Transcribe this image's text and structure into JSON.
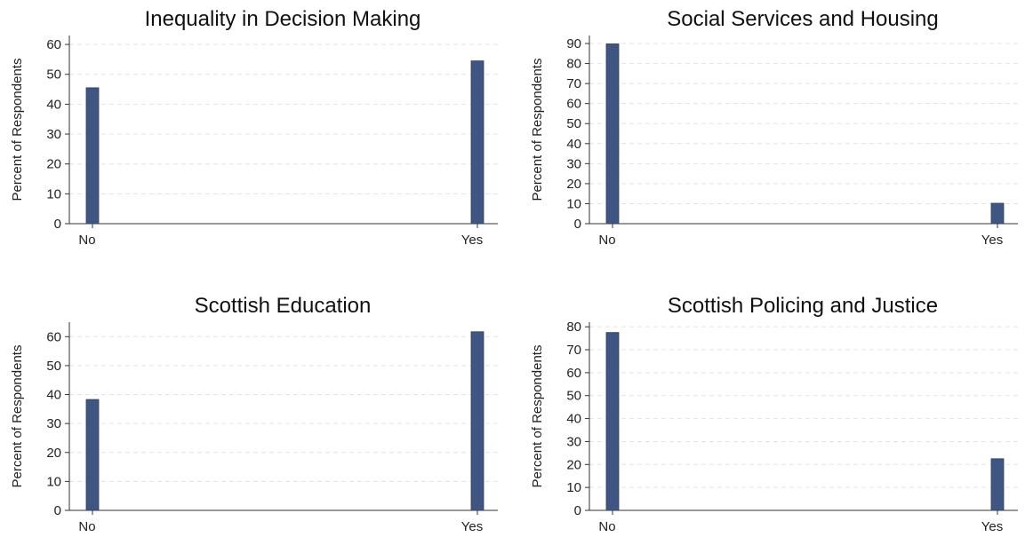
{
  "chart_data": [
    {
      "type": "bar",
      "title": "Inequality in Decision Making",
      "ylabel": "Percent of Respondents",
      "categories": [
        "No",
        "Yes"
      ],
      "values": [
        45.5,
        54.5
      ],
      "ylim": [
        0,
        63
      ],
      "yticks": [
        0,
        10,
        20,
        30,
        40,
        50,
        60
      ],
      "grid": true,
      "bar_color": "#3f5582"
    },
    {
      "type": "bar",
      "title": "Social Services and Housing",
      "ylabel": "Percent of Respondents",
      "categories": [
        "No",
        "Yes"
      ],
      "values": [
        89.8,
        10.2
      ],
      "ylim": [
        0,
        94
      ],
      "yticks": [
        0,
        10,
        20,
        30,
        40,
        50,
        60,
        70,
        80,
        90
      ],
      "grid": true,
      "bar_color": "#3f5582"
    },
    {
      "type": "bar",
      "title": "Scottish Education",
      "ylabel": "Percent of Respondents",
      "categories": [
        "No",
        "Yes"
      ],
      "values": [
        38.3,
        61.7
      ],
      "ylim": [
        0,
        65
      ],
      "yticks": [
        0,
        10,
        20,
        30,
        40,
        50,
        60
      ],
      "grid": true,
      "bar_color": "#3f5582"
    },
    {
      "type": "bar",
      "title": "Scottish Policing and Justice",
      "ylabel": "Percent of Respondents",
      "categories": [
        "No",
        "Yes"
      ],
      "values": [
        77.5,
        22.5
      ],
      "ylim": [
        0,
        82
      ],
      "yticks": [
        0,
        10,
        20,
        30,
        40,
        50,
        60,
        70,
        80
      ],
      "grid": true,
      "bar_color": "#3f5582"
    }
  ]
}
